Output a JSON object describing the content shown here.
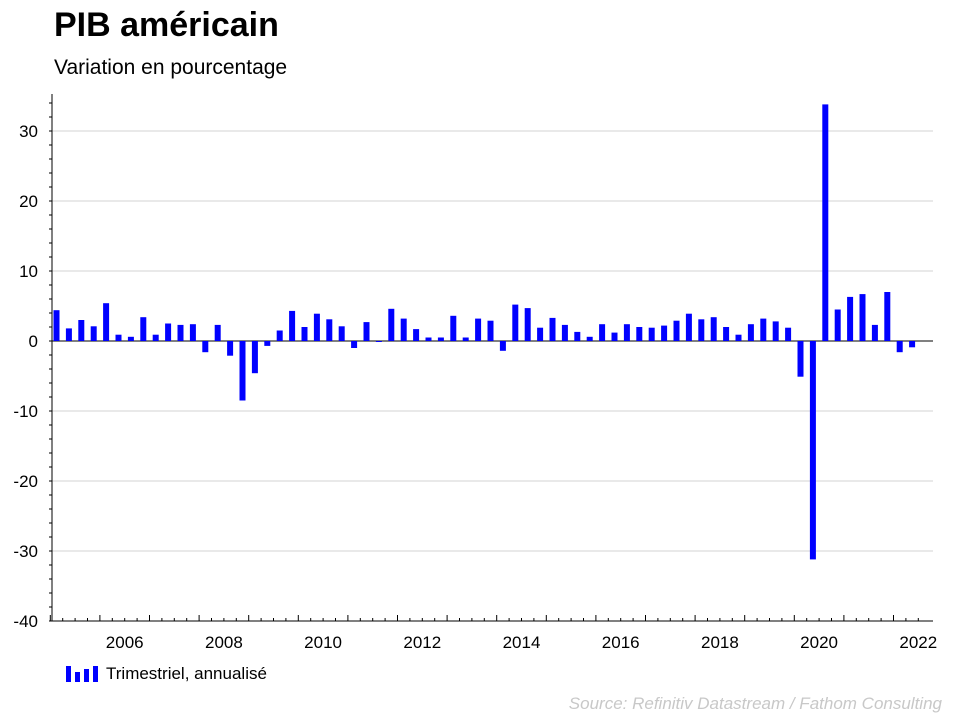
{
  "chart_data": {
    "type": "bar",
    "title": "PIB américain",
    "subtitle": "Variation en pourcentage",
    "xlabel": "",
    "ylabel": "",
    "ylim": [
      -40,
      35
    ],
    "yticks": [
      30,
      20,
      10,
      0,
      -10,
      -20,
      -30,
      -40
    ],
    "xticks": [
      "2006",
      "2008",
      "2010",
      "2012",
      "2014",
      "2016",
      "2018",
      "2020",
      "2022"
    ],
    "grid": true,
    "legend_position": "bottom-left",
    "x_start": "2005-Q1",
    "series": [
      {
        "name": "Trimestriel, annualisé",
        "color": "#0000ff",
        "values": [
          4.4,
          1.8,
          3.0,
          2.1,
          5.4,
          0.9,
          0.6,
          3.4,
          0.9,
          2.5,
          2.3,
          2.4,
          -1.6,
          2.3,
          -2.1,
          -8.5,
          -4.6,
          -0.7,
          1.5,
          4.3,
          2.0,
          3.9,
          3.1,
          2.1,
          -1.0,
          2.7,
          -0.1,
          4.6,
          3.2,
          1.7,
          0.5,
          0.5,
          3.6,
          0.5,
          3.2,
          2.9,
          -1.4,
          5.2,
          4.7,
          1.9,
          3.3,
          2.3,
          1.3,
          0.6,
          2.4,
          1.2,
          2.4,
          2.0,
          1.9,
          2.2,
          2.9,
          3.9,
          3.1,
          3.4,
          2.0,
          0.9,
          2.4,
          3.2,
          2.8,
          1.9,
          -5.1,
          -31.2,
          33.8,
          4.5,
          6.3,
          6.7,
          2.3,
          7.0,
          -1.6,
          -0.9
        ]
      }
    ],
    "source": "Source: Refinitiv Datastream / Fathom Consulting"
  }
}
